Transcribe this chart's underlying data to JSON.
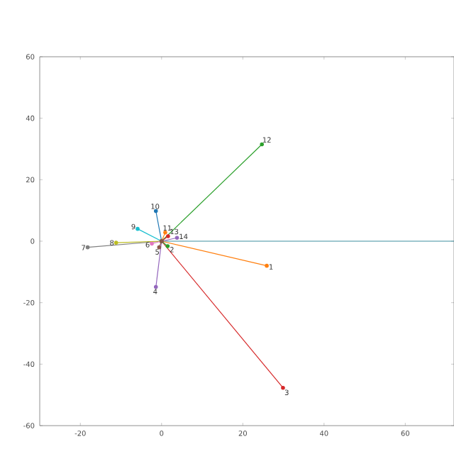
{
  "chart_data": {
    "type": "line",
    "marker": "circle",
    "xlim": [
      -30,
      72
    ],
    "ylim": [
      -60,
      60
    ],
    "xticks": [
      -20,
      0,
      20,
      40,
      60
    ],
    "yticks": [
      -60,
      -40,
      -20,
      0,
      20,
      40,
      60
    ],
    "series": [
      {
        "color": "#3f8fa0",
        "x": [
          0,
          72
        ],
        "values": [
          0,
          0
        ],
        "marker": "none"
      },
      {
        "name": "1",
        "color": "#ff7f0e",
        "x": [
          0,
          25.9
        ],
        "values": [
          0,
          -8.0
        ]
      },
      {
        "name": "2",
        "color": "#2ca02c",
        "x": [
          0,
          1.5
        ],
        "values": [
          0,
          -1.6
        ]
      },
      {
        "name": "3",
        "color": "#d62728",
        "x": [
          0,
          29.9
        ],
        "values": [
          0,
          -47.7
        ]
      },
      {
        "name": "4",
        "color": "#9467bd",
        "x": [
          0,
          -1.4
        ],
        "values": [
          0,
          -14.9
        ]
      },
      {
        "name": "5",
        "color": "#8c564b",
        "x": [
          0,
          -0.6
        ],
        "values": [
          0,
          -2.0
        ]
      },
      {
        "name": "6",
        "color": "#e377c2",
        "x": [
          0,
          -2.4
        ],
        "values": [
          0,
          -0.8
        ]
      },
      {
        "name": "7",
        "color": "#7f7f7f",
        "x": [
          0,
          -18.2
        ],
        "values": [
          0,
          -2.0
        ]
      },
      {
        "name": "8",
        "color": "#bcbd22",
        "x": [
          0,
          -11.2
        ],
        "values": [
          0,
          -0.5
        ]
      },
      {
        "name": "9",
        "color": "#17becf",
        "x": [
          0,
          -5.9
        ],
        "values": [
          0,
          4.0
        ]
      },
      {
        "name": "10",
        "color": "#1f77b4",
        "x": [
          0,
          -1.4
        ],
        "values": [
          0,
          9.8
        ]
      },
      {
        "name": "11",
        "color": "#ff7f0e",
        "x": [
          0,
          0.9
        ],
        "values": [
          0,
          2.8
        ]
      },
      {
        "name": "12",
        "color": "#2ca02c",
        "x": [
          0,
          24.7
        ],
        "values": [
          0,
          31.5
        ]
      },
      {
        "name": "13",
        "color": "#d62728",
        "x": [
          0,
          1.6
        ],
        "values": [
          0,
          1.6
        ]
      },
      {
        "name": "14",
        "color": "#9467bd",
        "x": [
          0,
          3.8
        ],
        "values": [
          0,
          1.1
        ]
      }
    ]
  }
}
